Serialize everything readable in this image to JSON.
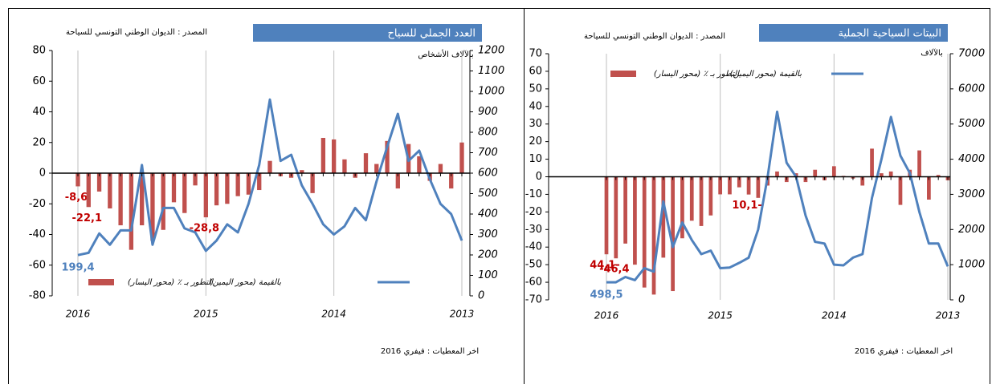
{
  "chart_data": [
    {
      "type": "bar",
      "title": "العدد الجملي للسياح",
      "source": "المصدر : الديوان الوطني التونسي للسياحة",
      "unit_label": "بالآلاف الأشخاص",
      "footnote": "اخر المعطيات : فيفري 2016",
      "legend": "bottom",
      "categories": [
        "2016",
        null,
        null,
        null,
        null,
        null,
        null,
        null,
        null,
        null,
        null,
        null,
        "2015",
        null,
        null,
        null,
        null,
        null,
        null,
        null,
        null,
        null,
        null,
        null,
        "2014",
        null,
        null,
        null,
        null,
        null,
        null,
        null,
        null,
        null,
        null,
        null,
        "2013"
      ],
      "ylim": [
        -80,
        80
      ],
      "yticks": [
        -80,
        -60,
        -40,
        -20,
        0,
        20,
        40,
        60,
        80
      ],
      "y2lim": [
        0,
        1200
      ],
      "y2ticks": [
        0,
        100,
        200,
        300,
        400,
        500,
        600,
        700,
        800,
        900,
        1000,
        1100,
        1200
      ],
      "series": [
        {
          "name": "التطور بـ ٪ (محور اليسار)",
          "type": "bar",
          "color": "#c0504d",
          "values": [
            -8.6,
            -22.1,
            -12,
            -23,
            -34,
            -50,
            -34,
            -44,
            -37,
            -19,
            -26,
            -8,
            -28.8,
            -21,
            -20,
            -15,
            -14,
            -11,
            8,
            -2,
            -3,
            2,
            -13,
            23,
            22,
            9,
            -3,
            13,
            6,
            21,
            -10,
            19,
            11,
            -5,
            6,
            -10,
            20
          ],
          "value_labels": [
            "-8,6",
            "-22,1",
            null,
            null,
            null,
            null,
            null,
            null,
            null,
            null,
            null,
            null,
            "-28,8",
            null,
            null,
            null,
            null,
            null,
            null,
            null,
            null,
            null,
            null,
            null,
            null,
            null,
            null,
            null,
            null,
            null,
            null,
            null,
            null,
            null,
            null,
            null,
            null
          ]
        },
        {
          "name": "بالقيمة (محور اليمين)",
          "type": "line",
          "axis": "y2",
          "color": "#4f81bd",
          "values": [
            199.4,
            210,
            305,
            250,
            320,
            320,
            640,
            250,
            430,
            430,
            330,
            310,
            220,
            270,
            350,
            310,
            450,
            640,
            960,
            660,
            690,
            540,
            450,
            350,
            300,
            340,
            430,
            370,
            560,
            730,
            890,
            660,
            710,
            570,
            450,
            400,
            270
          ],
          "value_labels": [
            "199,4",
            null,
            null,
            null,
            null,
            null,
            null,
            null,
            null,
            null,
            null,
            null,
            null,
            null,
            null,
            null,
            null,
            null,
            null,
            null,
            null,
            null,
            null,
            null,
            null,
            null,
            null,
            null,
            null,
            null,
            null,
            null,
            null,
            null,
            null,
            null,
            null
          ]
        }
      ]
    },
    {
      "type": "bar",
      "title": "البيتات السياحية الجملية",
      "source": "المصدر : الديوان الوطني التونسي للسياحة",
      "unit_label": "بالآلاف",
      "footnote": "اخر المعطيات : فيفري 2016",
      "legend": "top",
      "categories": [
        "2016",
        null,
        null,
        null,
        null,
        null,
        null,
        null,
        null,
        null,
        null,
        null,
        "2015",
        null,
        null,
        null,
        null,
        null,
        null,
        null,
        null,
        null,
        null,
        null,
        "2014",
        null,
        null,
        null,
        null,
        null,
        null,
        null,
        null,
        null,
        null,
        null,
        "2013"
      ],
      "ylim": [
        -70,
        70
      ],
      "yticks": [
        -70,
        -60,
        -50,
        -40,
        -30,
        -20,
        -10,
        0,
        10,
        20,
        30,
        40,
        50,
        60,
        70
      ],
      "y2lim": [
        0,
        7000
      ],
      "y2ticks": [
        0,
        1000,
        2000,
        3000,
        4000,
        5000,
        6000,
        7000
      ],
      "series": [
        {
          "name": "التطور بـ ٪ (محور اليسار)",
          "type": "bar",
          "color": "#c0504d",
          "values": [
            -44.1,
            -46.4,
            -38,
            -50,
            -63,
            -67,
            -46,
            -65,
            -35,
            -25,
            -28,
            -22,
            -10,
            -10,
            -6,
            -10.1,
            -12,
            -5,
            3,
            -3,
            2,
            -3,
            4,
            -2,
            6,
            0.5,
            -1,
            -5,
            16,
            2,
            3,
            -16,
            4,
            15,
            -13,
            1,
            -2
          ],
          "value_labels": [
            "44,1-",
            "-46,4",
            null,
            null,
            null,
            null,
            null,
            null,
            null,
            null,
            null,
            null,
            null,
            null,
            null,
            "10,1-",
            null,
            null,
            null,
            null,
            null,
            null,
            null,
            null,
            null,
            null,
            null,
            null,
            null,
            null,
            null,
            null,
            null,
            null,
            null,
            null,
            null
          ]
        },
        {
          "name": "بالقيمة (محور اليمين)",
          "type": "line",
          "axis": "y2",
          "color": "#4f81bd",
          "values": [
            498.5,
            500,
            650,
            560,
            900,
            800,
            2800,
            1500,
            2200,
            1700,
            1300,
            1400,
            900,
            920,
            1050,
            1200,
            2000,
            3500,
            5350,
            3900,
            3500,
            2400,
            1650,
            1600,
            1000,
            980,
            1200,
            1300,
            2900,
            4000,
            5200,
            4100,
            3600,
            2500,
            1600,
            1600,
            950
          ],
          "value_labels": [
            "498,5",
            null,
            null,
            null,
            null,
            null,
            null,
            null,
            null,
            null,
            null,
            null,
            null,
            null,
            null,
            null,
            null,
            null,
            null,
            null,
            null,
            null,
            null,
            null,
            null,
            null,
            null,
            null,
            null,
            null,
            null,
            null,
            null,
            null,
            null,
            null,
            null
          ]
        }
      ]
    }
  ]
}
